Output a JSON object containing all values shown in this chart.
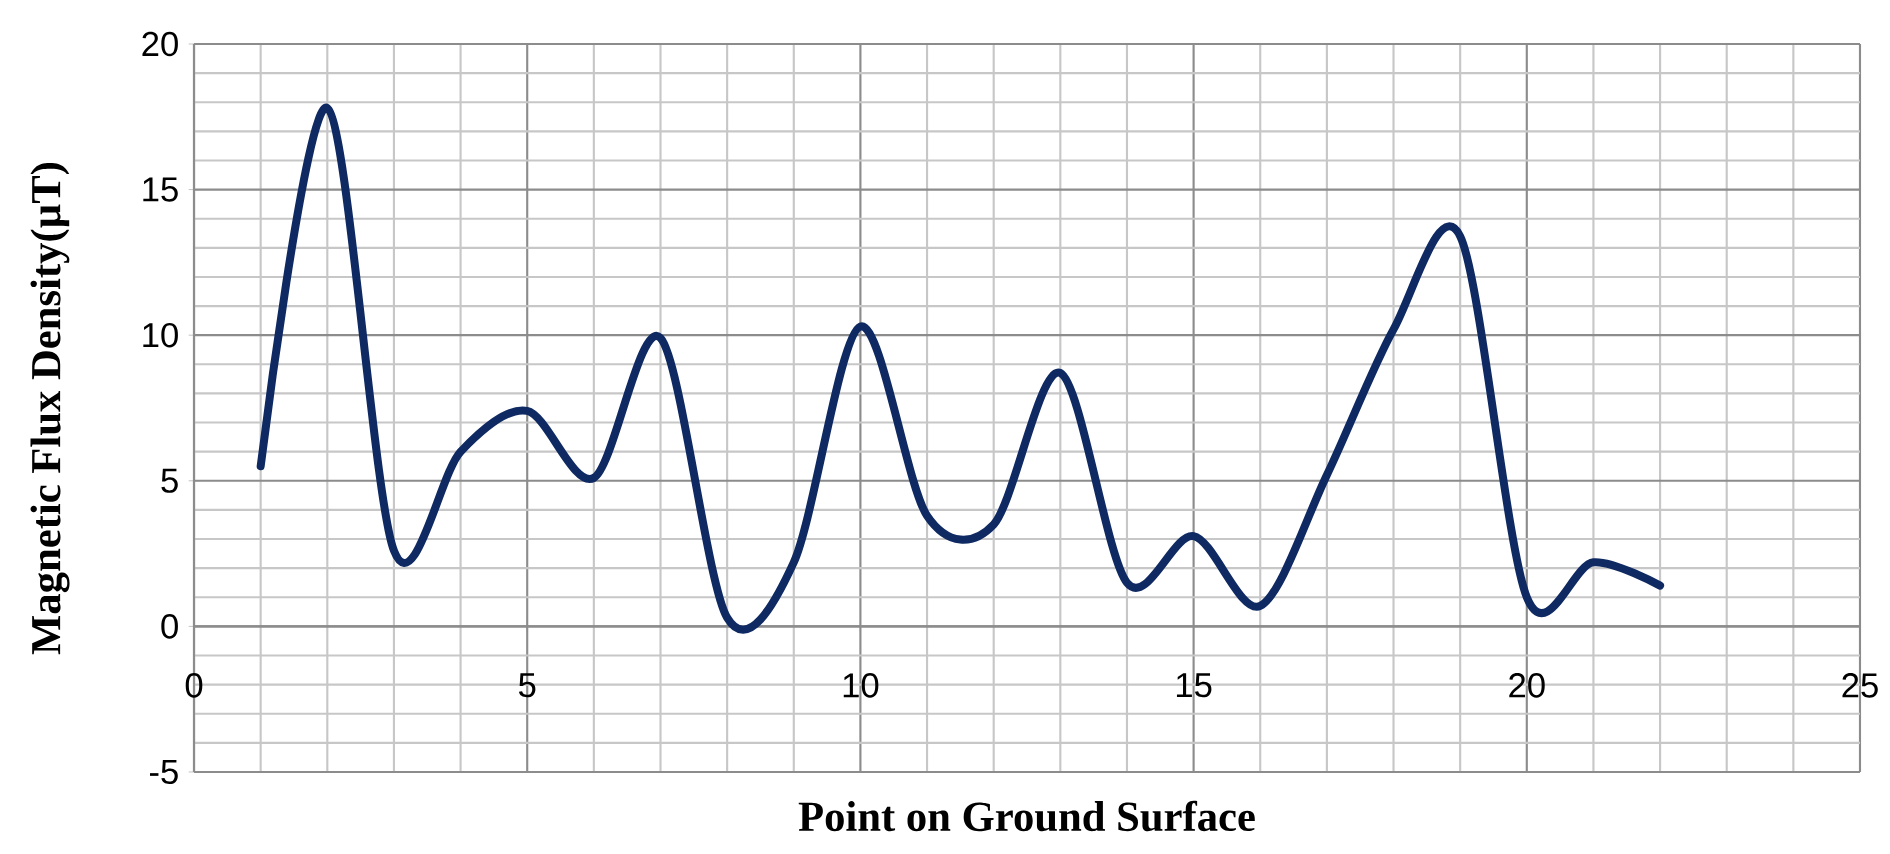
{
  "chart_data": {
    "type": "line",
    "xlabel": "Point on Ground Surface",
    "ylabel": "Magnetic Flux Density(µT)",
    "x": [
      1,
      2,
      3,
      4,
      5,
      6,
      7,
      8,
      9,
      10,
      11,
      12,
      13,
      14,
      15,
      16,
      17,
      18,
      19,
      20,
      21,
      22
    ],
    "series": [
      {
        "color": "#0f2a62",
        "values": [
          5.5,
          17.8,
          2.6,
          6.0,
          7.4,
          5.1,
          9.9,
          0.3,
          2.2,
          10.3,
          3.8,
          3.5,
          8.7,
          1.5,
          3.1,
          0.7,
          5.2,
          10.2,
          13.4,
          1.0,
          2.2,
          1.4
        ]
      }
    ],
    "xlim": [
      0,
      25
    ],
    "ylim": [
      -5,
      20
    ],
    "xticks": [
      0,
      5,
      10,
      15,
      20,
      25
    ],
    "yticks": [
      -5,
      0,
      5,
      10,
      15,
      20
    ],
    "grid": true,
    "marker": "none",
    "line_style": "solid"
  }
}
